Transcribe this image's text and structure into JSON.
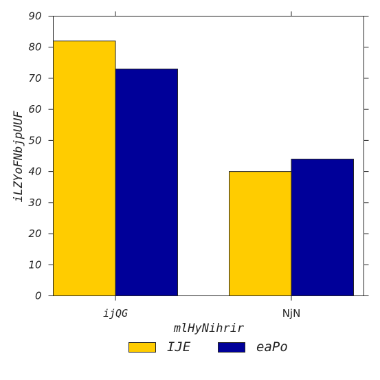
{
  "chart_data": {
    "type": "bar",
    "categories": [
      "ijQG",
      "NjN"
    ],
    "series": [
      {
        "name": "IJE",
        "values": [
          82,
          40
        ],
        "color": "#ffcc00"
      },
      {
        "name": "eaPo",
        "values": [
          73,
          44
        ],
        "color": "#000099"
      }
    ],
    "xlabel": "mlHyNihrir",
    "ylabel": "iLZYoFNbjpUUF",
    "ylim": [
      0,
      90
    ],
    "yticks": [
      0,
      10,
      20,
      30,
      40,
      50,
      60,
      70,
      80,
      90
    ],
    "grid": false,
    "legend_position": "bottom-center"
  }
}
